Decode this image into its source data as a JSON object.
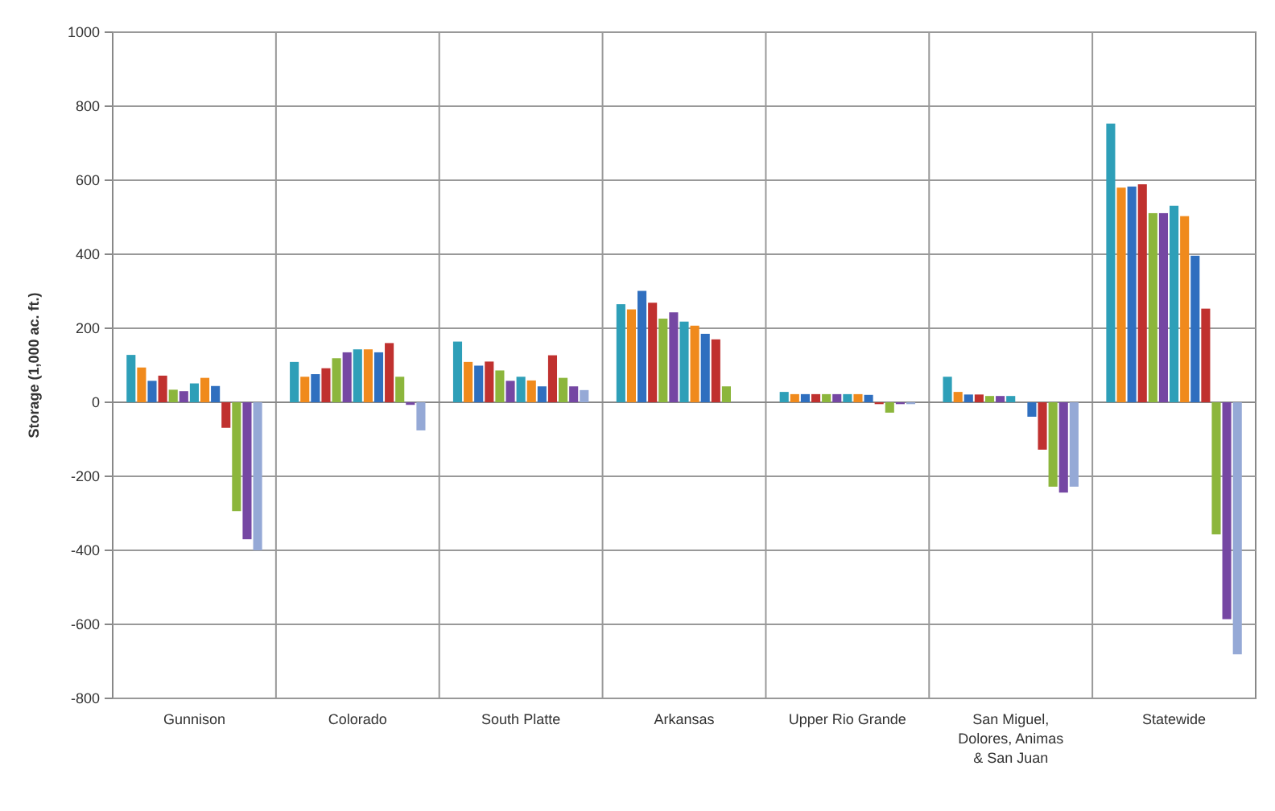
{
  "chart_data": {
    "type": "bar",
    "ylabel": "Storage (1,000 ac. ft.)",
    "categories": [
      "Gunnison",
      "Colorado",
      "South Platte",
      "Arkansas",
      "Upper Rio Grande",
      "San Miguel, Dolores, Animas & San Juan",
      "Statewide"
    ],
    "ylim": [
      -800,
      1000
    ],
    "yticks": [
      -800,
      -600,
      -400,
      -200,
      0,
      200,
      400,
      600,
      800,
      1000
    ],
    "grid": true,
    "series": [
      {
        "color": "#2e9fb8",
        "values": [
          128,
          109,
          164,
          265,
          28,
          69,
          753
        ]
      },
      {
        "color": "#f08a1c",
        "values": [
          94,
          69,
          109,
          251,
          22,
          28,
          580
        ]
      },
      {
        "color": "#2f6fbf",
        "values": [
          58,
          76,
          99,
          301,
          22,
          21,
          583
        ]
      },
      {
        "color": "#c0312f",
        "values": [
          72,
          92,
          110,
          269,
          22,
          21,
          589
        ]
      },
      {
        "color": "#8cb63c",
        "values": [
          34,
          119,
          86,
          226,
          22,
          17,
          511
        ]
      },
      {
        "color": "#7547a3",
        "values": [
          30,
          135,
          58,
          243,
          22,
          17,
          511
        ]
      },
      {
        "color": "#2e9fb8",
        "values": [
          51,
          143,
          69,
          218,
          22,
          17,
          531
        ]
      },
      {
        "color": "#f08a1c",
        "values": [
          66,
          143,
          59,
          207,
          22,
          0,
          503
        ]
      },
      {
        "color": "#2f6fbf",
        "values": [
          44,
          135,
          43,
          185,
          20,
          -39,
          396
        ]
      },
      {
        "color": "#c0312f",
        "values": [
          -69,
          160,
          127,
          170,
          -5,
          -128,
          253
        ]
      },
      {
        "color": "#8cb63c",
        "values": [
          -294,
          69,
          66,
          43,
          -28,
          -228,
          -357
        ]
      },
      {
        "color": "#7547a3",
        "values": [
          -370,
          -7,
          43,
          0,
          -5,
          -244,
          -586
        ]
      },
      {
        "color": "#95a9d6",
        "values": [
          -400,
          -76,
          33,
          0,
          -5,
          -228,
          -681
        ]
      }
    ]
  }
}
